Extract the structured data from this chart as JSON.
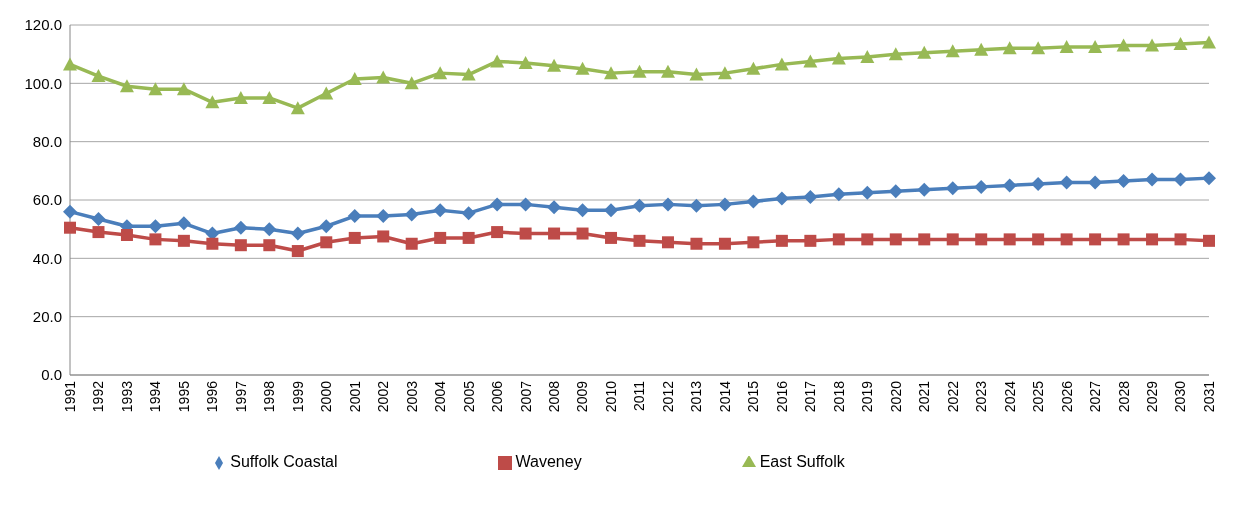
{
  "chart_data": {
    "type": "line",
    "categories": [
      "1991",
      "1992",
      "1993",
      "1994",
      "1995",
      "1996",
      "1997",
      "1998",
      "1999",
      "2000",
      "2001",
      "2002",
      "2003",
      "2004",
      "2005",
      "2006",
      "2007",
      "2008",
      "2009",
      "2010",
      "2011",
      "2012",
      "2013",
      "2014",
      "2015",
      "2016",
      "2017",
      "2018",
      "2019",
      "2020",
      "2021",
      "2022",
      "2023",
      "2024",
      "2025",
      "2026",
      "2027",
      "2028",
      "2029",
      "2030",
      "2031"
    ],
    "series": [
      {
        "name": "Suffolk Coastal",
        "color": "#4a7ebb",
        "marker": "diamond",
        "values": [
          56.0,
          53.5,
          51.0,
          51.0,
          52.0,
          48.5,
          50.5,
          50.0,
          48.5,
          51.0,
          54.5,
          54.5,
          55.0,
          56.5,
          55.5,
          58.5,
          58.5,
          57.5,
          56.5,
          56.5,
          58.0,
          58.5,
          58.0,
          58.5,
          59.5,
          60.5,
          61.0,
          62.0,
          62.5,
          63.0,
          63.5,
          64.0,
          64.5,
          65.0,
          65.5,
          66.0,
          66.0,
          66.5,
          67.0,
          67.0,
          67.5
        ]
      },
      {
        "name": "Waveney",
        "color": "#be4b48",
        "marker": "square",
        "values": [
          50.5,
          49.0,
          48.0,
          46.5,
          46.0,
          45.0,
          44.5,
          44.5,
          42.5,
          45.5,
          47.0,
          47.5,
          45.0,
          47.0,
          47.0,
          49.0,
          48.5,
          48.5,
          48.5,
          47.0,
          46.0,
          45.5,
          45.0,
          45.0,
          45.5,
          46.0,
          46.0,
          46.5,
          46.5,
          46.5,
          46.5,
          46.5,
          46.5,
          46.5,
          46.5,
          46.5,
          46.5,
          46.5,
          46.5,
          46.5,
          46.0
        ]
      },
      {
        "name": "East Suffolk",
        "color": "#98b954",
        "marker": "triangle",
        "values": [
          106.5,
          102.5,
          99.0,
          98.0,
          98.0,
          93.5,
          95.0,
          95.0,
          91.5,
          96.5,
          101.5,
          102.0,
          100.0,
          103.5,
          103.0,
          107.5,
          107.0,
          106.0,
          105.0,
          103.5,
          104.0,
          104.0,
          103.0,
          103.5,
          105.0,
          106.5,
          107.5,
          108.5,
          109.0,
          110.0,
          110.5,
          111.0,
          111.5,
          112.0,
          112.0,
          112.5,
          112.5,
          113.0,
          113.0,
          113.5,
          114.0
        ]
      }
    ],
    "ylim": [
      0,
      120
    ],
    "yticks": [
      {
        "value": 0,
        "label": "0.0"
      },
      {
        "value": 20,
        "label": "20.0"
      },
      {
        "value": 40,
        "label": "40.0"
      },
      {
        "value": 60,
        "label": "60.0"
      },
      {
        "value": 80,
        "label": "80.0"
      },
      {
        "value": 100,
        "label": "100.0"
      },
      {
        "value": 120,
        "label": "120.0"
      }
    ],
    "grid": "y",
    "legend": "bottom",
    "line_style": "solid"
  }
}
